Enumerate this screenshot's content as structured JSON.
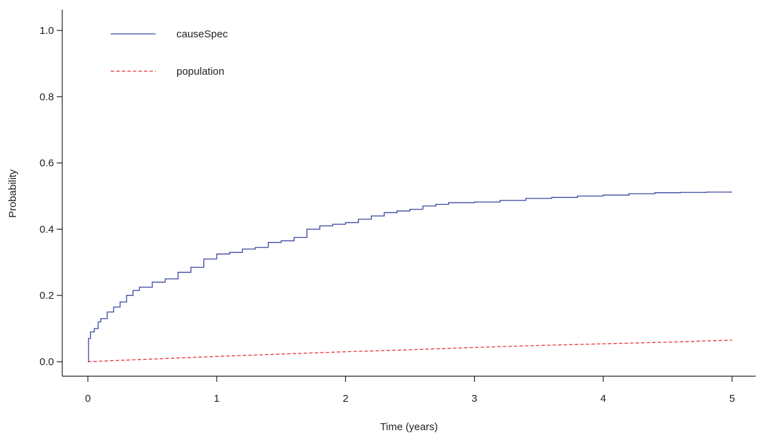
{
  "chart_data": {
    "type": "line",
    "xlabel": "Time (years)",
    "ylabel": "Probability",
    "xlim": [
      0,
      5
    ],
    "ylim": [
      0,
      1
    ],
    "xticks": [
      "0",
      "1",
      "2",
      "3",
      "4",
      "5"
    ],
    "yticks": [
      "0.0",
      "0.2",
      "0.4",
      "0.6",
      "0.8",
      "1.0"
    ],
    "grid": false,
    "legend_position": "top-left",
    "series": [
      {
        "name": "causeSpec",
        "color": "#3a46a0",
        "dash": "solid",
        "step": true,
        "x": [
          0,
          0.005,
          0.02,
          0.05,
          0.08,
          0.1,
          0.15,
          0.2,
          0.25,
          0.3,
          0.35,
          0.4,
          0.5,
          0.6,
          0.7,
          0.8,
          0.9,
          1.0,
          1.1,
          1.2,
          1.3,
          1.4,
          1.5,
          1.6,
          1.7,
          1.8,
          1.9,
          2.0,
          2.1,
          2.2,
          2.3,
          2.4,
          2.5,
          2.6,
          2.7,
          2.8,
          3.0,
          3.2,
          3.4,
          3.6,
          3.8,
          4.0,
          4.2,
          4.4,
          4.6,
          4.8,
          5.0
        ],
        "y": [
          0,
          0.07,
          0.09,
          0.1,
          0.12,
          0.13,
          0.15,
          0.165,
          0.18,
          0.2,
          0.215,
          0.225,
          0.24,
          0.25,
          0.27,
          0.285,
          0.31,
          0.325,
          0.33,
          0.34,
          0.345,
          0.36,
          0.365,
          0.375,
          0.4,
          0.41,
          0.415,
          0.42,
          0.43,
          0.44,
          0.45,
          0.455,
          0.46,
          0.47,
          0.475,
          0.48,
          0.482,
          0.487,
          0.493,
          0.496,
          0.5,
          0.503,
          0.507,
          0.51,
          0.511,
          0.512,
          0.512
        ]
      },
      {
        "name": "population",
        "color": "#e8313a",
        "dash": "dashed",
        "step": false,
        "x": [
          0,
          0.5,
          1,
          1.5,
          2,
          2.5,
          3,
          3.5,
          4,
          4.5,
          5
        ],
        "y": [
          0,
          0.008,
          0.016,
          0.023,
          0.03,
          0.036,
          0.043,
          0.049,
          0.054,
          0.059,
          0.065
        ]
      }
    ]
  }
}
